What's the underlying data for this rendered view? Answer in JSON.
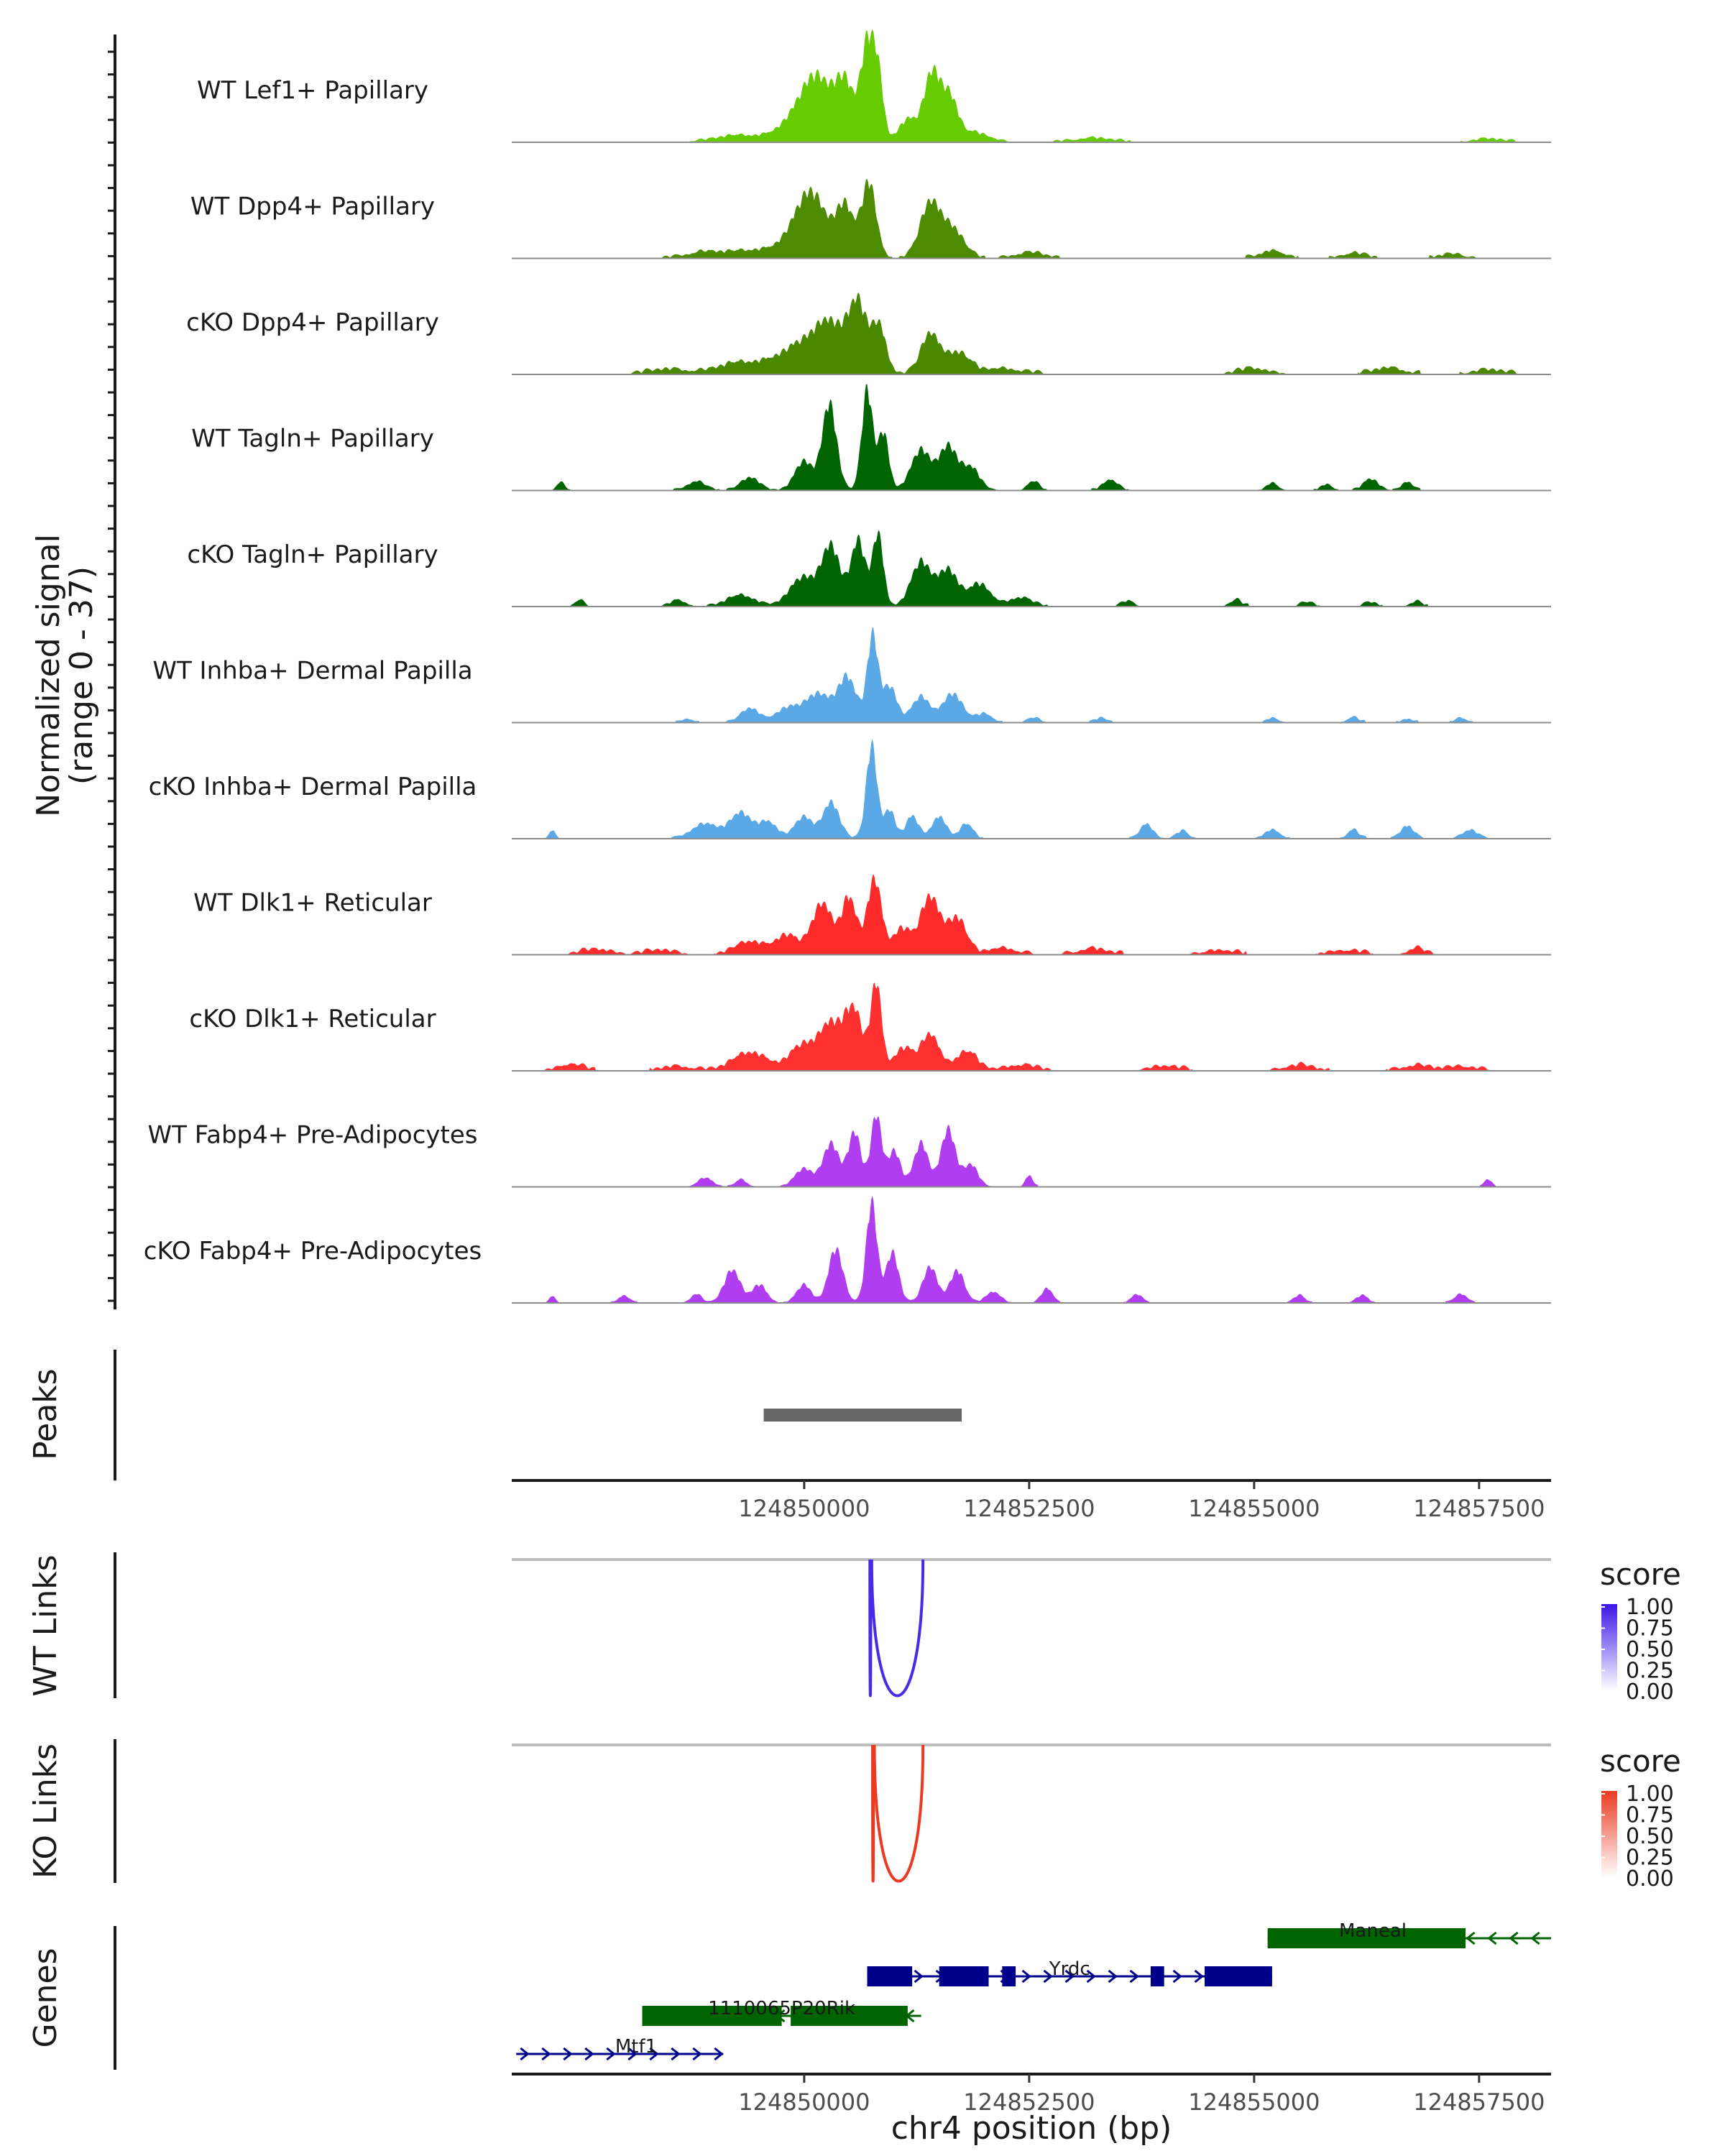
{
  "chart_data": {
    "type": "area",
    "title": "",
    "region": "chr4",
    "xlabel": "chr4 position (bp)",
    "xlim": [
      124846750,
      124858300
    ],
    "x_ticks": [
      124850000,
      124852500,
      124855000,
      124857500
    ],
    "x_tick_labels": [
      "124850000",
      "124852500",
      "124855000",
      "124857500"
    ],
    "coverage": {
      "ylabel_line1": "Normalized signal",
      "ylabel_line2": "(range 0 - 37)",
      "ylim": [
        0,
        37
      ],
      "tracks": [
        {
          "name": "WT Lef1+ Papillary",
          "color": "#66cc00",
          "peaks": [
            [
              124849300,
              0.9,
              260
            ],
            [
              124849950,
              3.5,
              200
            ],
            [
              124850150,
              7,
              150
            ],
            [
              124850450,
              8,
              110
            ],
            [
              124850700,
              13,
              70
            ],
            [
              124850820,
              9,
              60
            ],
            [
              124851150,
              3,
              100
            ],
            [
              124851420,
              9.5,
              90
            ],
            [
              124851620,
              6,
              90
            ],
            [
              124851900,
              1.2,
              150
            ],
            [
              124853200,
              0.5,
              200
            ],
            [
              124857600,
              0.4,
              150
            ]
          ],
          "noise": 0.2
        },
        {
          "name": "WT Dpp4+ Papillary",
          "color": "#4d8c00",
          "peaks": [
            [
              124848900,
              0.8,
              200
            ],
            [
              124849400,
              1,
              200
            ],
            [
              124849950,
              3.5,
              200
            ],
            [
              124850100,
              6.5,
              150
            ],
            [
              124850450,
              7,
              100
            ],
            [
              124850720,
              10.5,
              80
            ],
            [
              124851400,
              7.5,
              110
            ],
            [
              124851650,
              4,
              120
            ],
            [
              124852500,
              0.7,
              150
            ],
            [
              124855200,
              1,
              120
            ],
            [
              124856100,
              0.6,
              120
            ],
            [
              124857200,
              0.5,
              120
            ]
          ],
          "noise": 0.25
        },
        {
          "name": "cKO Dpp4+ Papillary",
          "color": "#4a8800",
          "peaks": [
            [
              124848500,
              0.6,
              200
            ],
            [
              124849300,
              1.5,
              250
            ],
            [
              124849950,
              3.5,
              250
            ],
            [
              124850300,
              6,
              180
            ],
            [
              124850600,
              8.5,
              100
            ],
            [
              124850830,
              6.5,
              80
            ],
            [
              124851400,
              5.5,
              100
            ],
            [
              124851700,
              3,
              130
            ],
            [
              124852200,
              0.7,
              200
            ],
            [
              124855000,
              0.7,
              150
            ],
            [
              124856500,
              0.8,
              150
            ],
            [
              124857600,
              0.5,
              150
            ]
          ],
          "noise": 0.3
        },
        {
          "name": "WT Tagln+ Papillary",
          "color": "#006400",
          "peaks": [
            [
              124847300,
              1.2,
              40
            ],
            [
              124848800,
              1.2,
              100
            ],
            [
              124849400,
              1.8,
              100
            ],
            [
              124850000,
              4,
              100
            ],
            [
              124850280,
              12,
              80
            ],
            [
              124850700,
              14,
              60
            ],
            [
              124850880,
              8,
              60
            ],
            [
              124851300,
              5.5,
              110
            ],
            [
              124851600,
              6,
              100
            ],
            [
              124851850,
              3,
              100
            ],
            [
              124852550,
              1.2,
              60
            ],
            [
              124853400,
              1.4,
              80
            ],
            [
              124855200,
              1,
              60
            ],
            [
              124855800,
              0.8,
              60
            ],
            [
              124856300,
              1.5,
              80
            ],
            [
              124856700,
              1.2,
              60
            ]
          ],
          "noise": 0.15
        },
        {
          "name": "cKO Tagln+ Papillary",
          "color": "#006400",
          "peaks": [
            [
              124847500,
              0.8,
              40
            ],
            [
              124848600,
              0.8,
              80
            ],
            [
              124849300,
              1.5,
              150
            ],
            [
              124850000,
              4,
              150
            ],
            [
              124850300,
              8,
              100
            ],
            [
              124850600,
              9,
              80
            ],
            [
              124850820,
              10,
              60
            ],
            [
              124851300,
              6,
              110
            ],
            [
              124851600,
              5,
              110
            ],
            [
              124851950,
              3,
              120
            ],
            [
              124852400,
              1.2,
              120
            ],
            [
              124853600,
              0.7,
              60
            ],
            [
              124854800,
              0.8,
              60
            ],
            [
              124855600,
              0.5,
              60
            ],
            [
              124856300,
              0.5,
              60
            ],
            [
              124856800,
              0.6,
              60
            ]
          ],
          "noise": 0.2
        },
        {
          "name": "WT Inhba+ Dermal Papilla",
          "color": "#5aa9e6",
          "peaks": [
            [
              124848700,
              0.5,
              60
            ],
            [
              124849400,
              2,
              100
            ],
            [
              124849800,
              1.8,
              120
            ],
            [
              124850150,
              4,
              150
            ],
            [
              124850480,
              6,
              100
            ],
            [
              124850760,
              12,
              60
            ],
            [
              124850950,
              5,
              80
            ],
            [
              124851300,
              3.5,
              100
            ],
            [
              124851650,
              4,
              110
            ],
            [
              124852000,
              1.2,
              80
            ],
            [
              124852550,
              0.6,
              60
            ],
            [
              124853300,
              0.6,
              60
            ],
            [
              124855200,
              0.6,
              60
            ],
            [
              124856100,
              0.7,
              60
            ],
            [
              124856700,
              0.5,
              60
            ],
            [
              124857300,
              0.6,
              60
            ]
          ],
          "noise": 0.15
        },
        {
          "name": "cKO Inhba+ Dermal Papilla",
          "color": "#5aa9e6",
          "peaks": [
            [
              124847200,
              1.2,
              30
            ],
            [
              124848900,
              2,
              150
            ],
            [
              124849300,
              3.5,
              120
            ],
            [
              124849600,
              2.2,
              100
            ],
            [
              124850000,
              3,
              100
            ],
            [
              124850300,
              5,
              90
            ],
            [
              124850750,
              13,
              60
            ],
            [
              124850950,
              4,
              60
            ],
            [
              124851200,
              3,
              70
            ],
            [
              124851500,
              3,
              80
            ],
            [
              124851800,
              2,
              70
            ],
            [
              124853800,
              2,
              70
            ],
            [
              124854200,
              1,
              60
            ],
            [
              124855200,
              1.2,
              80
            ],
            [
              124856100,
              1.2,
              60
            ],
            [
              124856700,
              1.8,
              70
            ],
            [
              124857400,
              1.2,
              80
            ]
          ],
          "noise": 0.15
        },
        {
          "name": "WT Dlk1+ Reticular",
          "color": "#ff2a2a",
          "peaks": [
            [
              124847700,
              0.6,
              150
            ],
            [
              124848400,
              0.5,
              150
            ],
            [
              124849400,
              1.8,
              150
            ],
            [
              124849800,
              2.5,
              120
            ],
            [
              124850200,
              7,
              120
            ],
            [
              124850500,
              7.5,
              80
            ],
            [
              124850780,
              10.5,
              80
            ],
            [
              124851080,
              3.5,
              90
            ],
            [
              124851400,
              8,
              110
            ],
            [
              124851700,
              5,
              100
            ],
            [
              124852200,
              0.8,
              150
            ],
            [
              124853200,
              0.7,
              150
            ],
            [
              124854600,
              0.5,
              150
            ],
            [
              124856000,
              0.5,
              150
            ],
            [
              124856800,
              0.8,
              80
            ]
          ],
          "noise": 0.3
        },
        {
          "name": "cKO Dlk1+ Reticular",
          "color": "#ff3030",
          "peaks": [
            [
              124847400,
              0.8,
              120
            ],
            [
              124848600,
              0.5,
              150
            ],
            [
              124849400,
              2.5,
              180
            ],
            [
              124850000,
              3.5,
              150
            ],
            [
              124850300,
              6,
              120
            ],
            [
              124850550,
              8,
              100
            ],
            [
              124850800,
              12,
              60
            ],
            [
              124851100,
              3,
              100
            ],
            [
              124851400,
              5,
              100
            ],
            [
              124851800,
              2.5,
              120
            ],
            [
              124852400,
              0.7,
              150
            ],
            [
              124854000,
              0.5,
              150
            ],
            [
              124855500,
              0.6,
              150
            ],
            [
              124856800,
              0.6,
              150
            ],
            [
              124857300,
              0.5,
              150
            ]
          ],
          "noise": 0.3
        },
        {
          "name": "WT Fabp4+ Pre-Adipocytes",
          "color": "#b03ef0",
          "peaks": [
            [
              124848900,
              1.2,
              80
            ],
            [
              124849300,
              1,
              60
            ],
            [
              124850000,
              2.5,
              100
            ],
            [
              124850300,
              6,
              90
            ],
            [
              124850560,
              7.5,
              70
            ],
            [
              124850800,
              10,
              60
            ],
            [
              124851000,
              5,
              70
            ],
            [
              124851300,
              6,
              80
            ],
            [
              124851600,
              8,
              80
            ],
            [
              124851850,
              3,
              80
            ],
            [
              124852500,
              1.5,
              40
            ],
            [
              124857600,
              1,
              40
            ]
          ],
          "noise": 0.1
        },
        {
          "name": "cKO Fabp4+ Pre-Adipocytes",
          "color": "#b03ef0",
          "peaks": [
            [
              124847200,
              1,
              30
            ],
            [
              124848000,
              1,
              60
            ],
            [
              124848800,
              1.2,
              60
            ],
            [
              124849200,
              4.5,
              90
            ],
            [
              124849500,
              2.5,
              80
            ],
            [
              124850000,
              2.5,
              80
            ],
            [
              124850350,
              7.5,
              80
            ],
            [
              124850750,
              14,
              60
            ],
            [
              124850980,
              7,
              70
            ],
            [
              124851400,
              5,
              80
            ],
            [
              124851700,
              4.5,
              80
            ],
            [
              124852100,
              1.5,
              80
            ],
            [
              124852700,
              2,
              60
            ],
            [
              124853700,
              1.2,
              60
            ],
            [
              124855500,
              1,
              60
            ],
            [
              124856200,
              1,
              60
            ],
            [
              124857300,
              1.2,
              70
            ]
          ],
          "noise": 0.1
        }
      ]
    },
    "peaks_track": {
      "label": "Peaks",
      "color": "#666666",
      "regions": [
        [
          124849550,
          124851750
        ]
      ]
    },
    "links": [
      {
        "label": "WT Links",
        "color": "#4b2ae6",
        "arcs": [
          {
            "start": 124850750,
            "end": 124851320,
            "score": 0.95
          },
          {
            "start": 124850730,
            "end": 124850740,
            "score": 0.9
          }
        ]
      },
      {
        "label": "KO Links",
        "color": "#ea3a22",
        "arcs": [
          {
            "start": 124850780,
            "end": 124851320,
            "score": 0.95
          },
          {
            "start": 124850760,
            "end": 124850770,
            "score": 0.9
          }
        ]
      }
    ],
    "link_legends": [
      {
        "title": "score",
        "ticks": [
          "1.00",
          "0.75",
          "0.50",
          "0.25",
          "0.00"
        ],
        "low_color": "#ffffff",
        "high_color": "#3b14e8"
      },
      {
        "title": "score",
        "ticks": [
          "1.00",
          "0.75",
          "0.50",
          "0.25",
          "0.00"
        ],
        "low_color": "#ffffff",
        "high_color": "#ea3a22"
      }
    ],
    "genes": {
      "label": "Genes",
      "items": [
        {
          "name": "Maneal",
          "strand": "-",
          "color": "#006400",
          "start": 124855150,
          "end": 124858300,
          "exons": [
            [
              124855150,
              124857350
            ]
          ]
        },
        {
          "name": "Yrdc",
          "strand": "+",
          "color": "#00008b",
          "start": 124850700,
          "end": 124855200,
          "exons": [
            [
              124850700,
              124851200
            ],
            [
              124851500,
              124852050
            ],
            [
              124852200,
              124852350
            ],
            [
              124853850,
              124854000
            ],
            [
              124854450,
              124855200
            ]
          ]
        },
        {
          "name": "1110065P20Rik",
          "strand": "-",
          "color": "#006400",
          "start": 124848200,
          "end": 124851300,
          "exons": [
            [
              124848200,
              124849750
            ],
            [
              124849850,
              124851150
            ]
          ]
        },
        {
          "name": "Mtf1",
          "strand": "+",
          "color": "#00008b",
          "start": 124846800,
          "end": 124849100,
          "exons": []
        }
      ]
    }
  }
}
